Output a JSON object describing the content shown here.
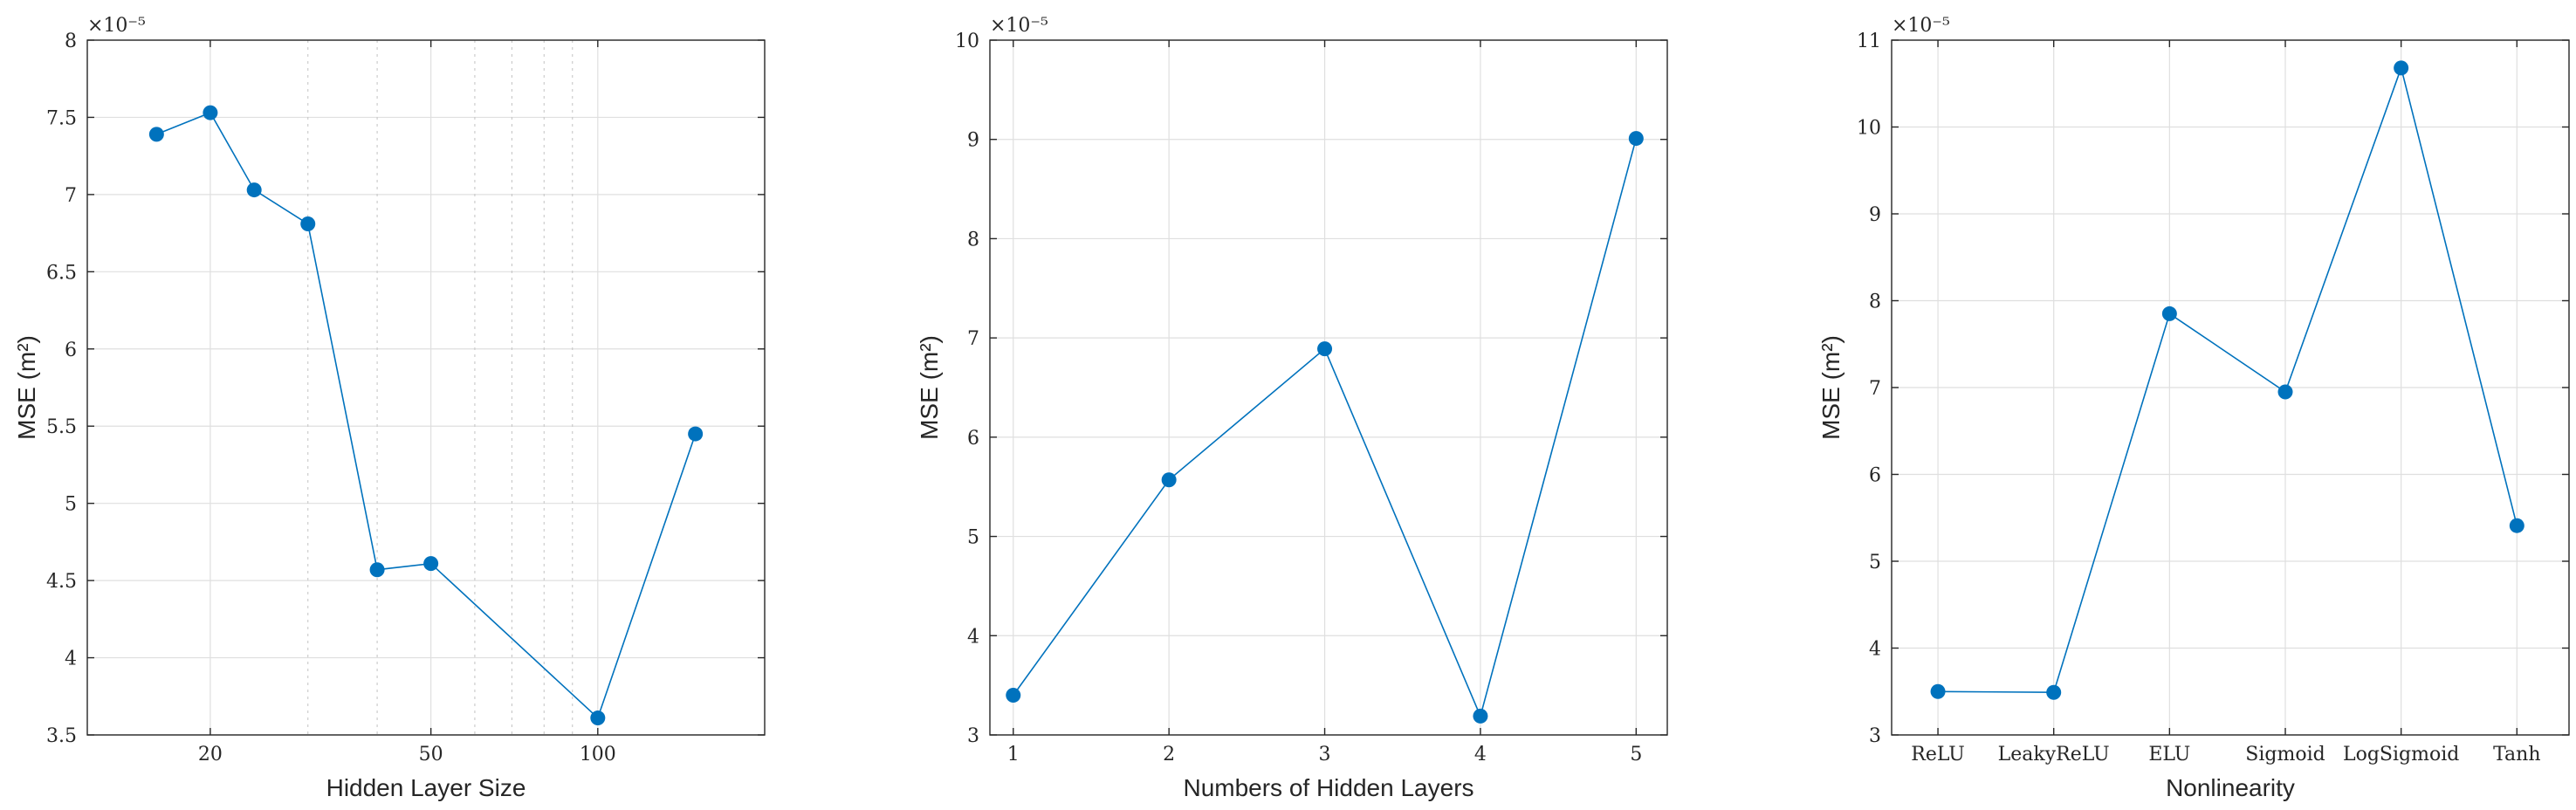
{
  "chart_data": [
    {
      "type": "line",
      "xlabel": "Hidden Layer Size",
      "ylabel": "MSE (m²)",
      "y_exponent": "×10⁻⁵",
      "x_scale": "log",
      "xlim": [
        12,
        200
      ],
      "ylim": [
        3.5,
        8
      ],
      "x_ticks": [
        20,
        50,
        100
      ],
      "x_tick_labels": [
        "20",
        "50",
        "100"
      ],
      "x_minor_grid": [
        30,
        40,
        60,
        70,
        80,
        90
      ],
      "y_ticks": [
        3.5,
        4,
        4.5,
        5,
        5.5,
        6,
        6.5,
        7,
        7.5,
        8
      ],
      "y_tick_labels": [
        "3.5",
        "4",
        "4.5",
        "5",
        "5.5",
        "6",
        "6.5",
        "7",
        "7.5",
        "8"
      ],
      "grid": true,
      "color": "#0072BD",
      "series": [
        {
          "x": [
            16,
            20,
            24,
            30,
            40,
            50,
            100,
            150
          ],
          "y": [
            7.39,
            7.53,
            7.03,
            6.81,
            4.57,
            4.61,
            3.61,
            5.45
          ]
        }
      ]
    },
    {
      "type": "line",
      "xlabel": "Numbers of Hidden Layers",
      "ylabel": "MSE (m²)",
      "y_exponent": "×10⁻⁵",
      "xlim": [
        0.85,
        5.2
      ],
      "ylim": [
        3,
        10
      ],
      "x_ticks": [
        1,
        2,
        3,
        4,
        5
      ],
      "x_tick_labels": [
        "1",
        "2",
        "3",
        "4",
        "5"
      ],
      "y_ticks": [
        3,
        4,
        5,
        6,
        7,
        8,
        9,
        10
      ],
      "y_tick_labels": [
        "3",
        "4",
        "5",
        "6",
        "7",
        "8",
        "9",
        "10"
      ],
      "grid": true,
      "color": "#0072BD",
      "series": [
        {
          "x": [
            1,
            2,
            3,
            4,
            5
          ],
          "y": [
            3.4,
            5.57,
            6.89,
            3.19,
            9.01
          ]
        }
      ]
    },
    {
      "type": "line",
      "xlabel": "Nonlinearity",
      "ylabel": "MSE (m²)",
      "y_exponent": "×10⁻⁵",
      "xlim": [
        0.6,
        6.45
      ],
      "ylim": [
        3,
        11
      ],
      "categories": [
        "ReLU",
        "LeakyReLU",
        "ELU",
        "Sigmoid",
        "LogSigmoid",
        "Tanh"
      ],
      "y_ticks": [
        3,
        4,
        5,
        6,
        7,
        8,
        9,
        10,
        11
      ],
      "y_tick_labels": [
        "3",
        "4",
        "5",
        "6",
        "7",
        "8",
        "9",
        "10",
        "11"
      ],
      "grid": true,
      "color": "#0072BD",
      "series": [
        {
          "values": [
            3.5,
            3.49,
            7.85,
            6.95,
            10.68,
            5.41
          ]
        }
      ]
    }
  ]
}
